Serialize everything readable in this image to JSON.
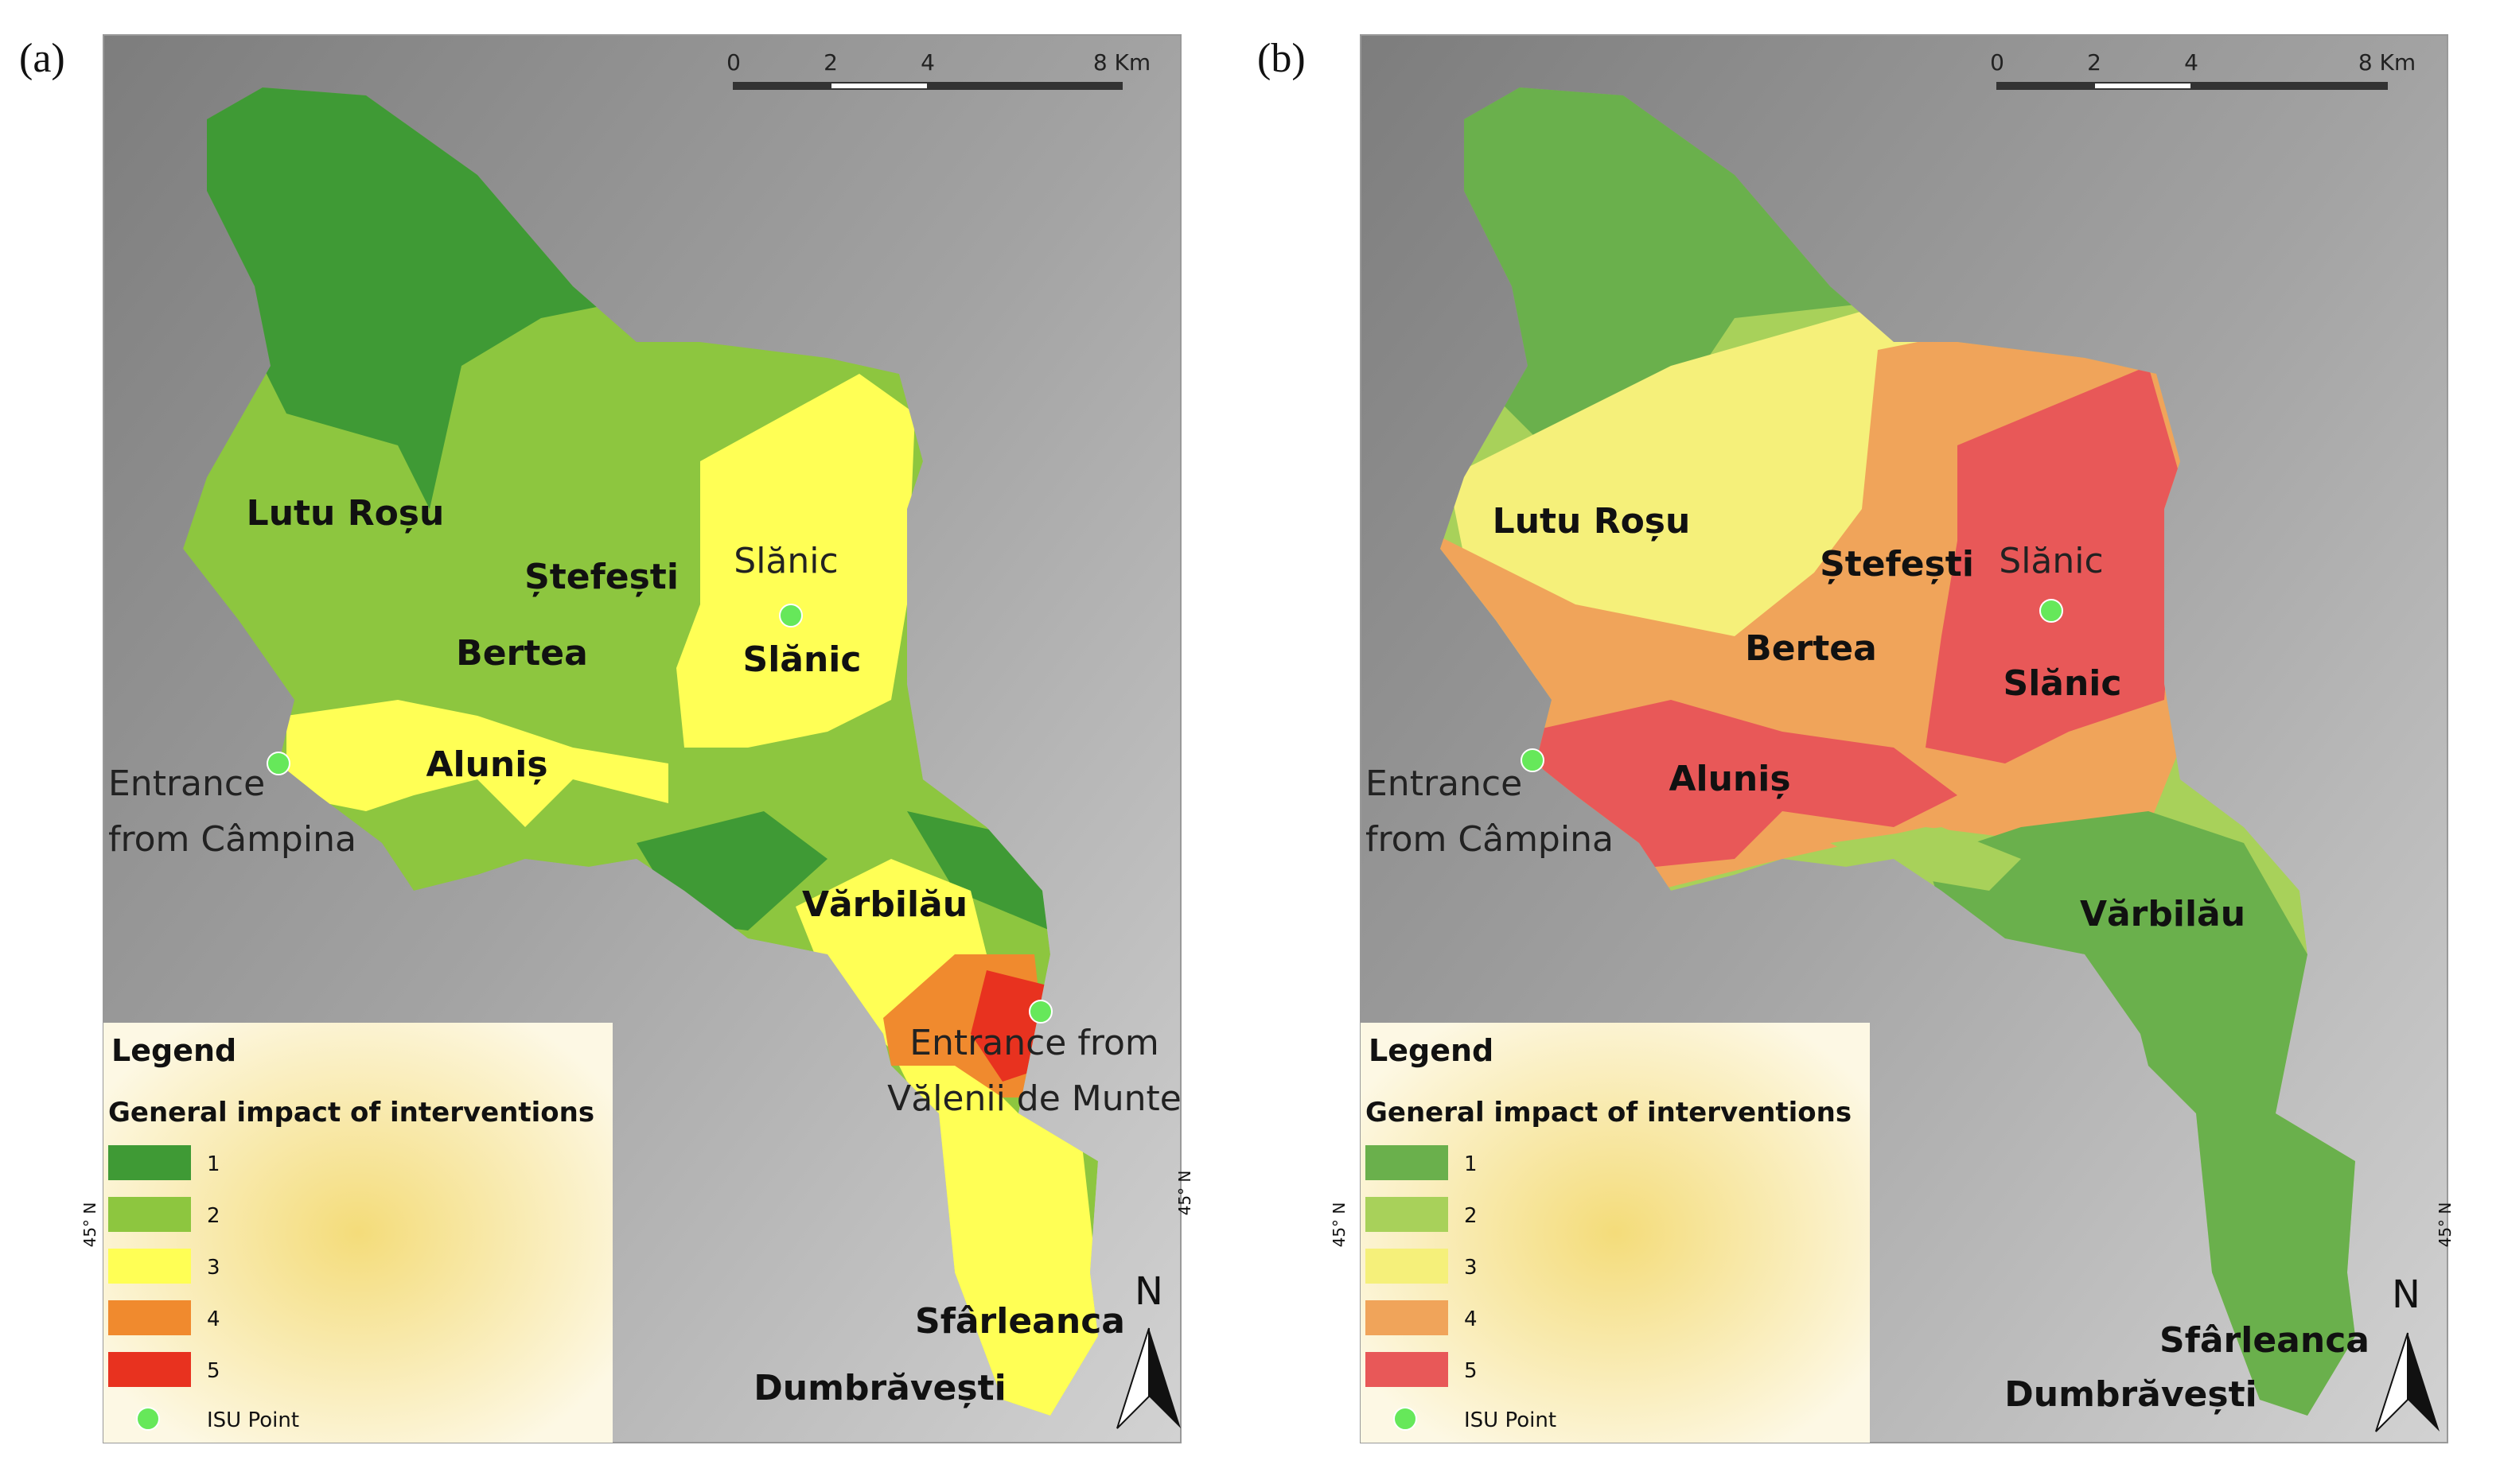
{
  "panels": [
    {
      "label": "(a)",
      "scale_labels": [
        "0",
        "2",
        "4",
        "8 Km"
      ],
      "lat_label": "45° N",
      "north": "N",
      "places": [
        {
          "lines": [
            "Lutu Roșu"
          ],
          "style": "bold"
        },
        {
          "lines": [
            "Ștefești"
          ],
          "style": "bold"
        },
        {
          "lines": [
            "Slănic"
          ],
          "style": "normal"
        },
        {
          "lines": [
            "Bertea"
          ],
          "style": "bold"
        },
        {
          "lines": [
            "Slănic"
          ],
          "style": "bold"
        },
        {
          "lines": [
            "Aluniș"
          ],
          "style": "bold"
        },
        {
          "lines": [
            "Entrance",
            "from Câmpina"
          ],
          "style": "normal"
        },
        {
          "lines": [
            "Vărbilău"
          ],
          "style": "bold"
        },
        {
          "lines": [
            "Entrance from",
            "Vălenii de Munte"
          ],
          "style": "normal"
        },
        {
          "lines": [
            "Sfârleanca"
          ],
          "style": "bold"
        },
        {
          "lines": [
            "Dumbrăvești"
          ],
          "style": "bold"
        }
      ],
      "legend": {
        "title": "Legend",
        "subtitle": "General impact of interventions",
        "items": [
          {
            "label": "1",
            "color": "#3f9a35"
          },
          {
            "label": "2",
            "color": "#8dc63f"
          },
          {
            "label": "3",
            "color": "#ffff55"
          },
          {
            "label": "4",
            "color": "#f08a2e"
          },
          {
            "label": "5",
            "color": "#e8321f"
          }
        ],
        "isu": "ISU Point"
      }
    },
    {
      "label": "(b)",
      "scale_labels": [
        "0",
        "2",
        "4",
        "8 Km"
      ],
      "lat_label": "45° N",
      "north": "N",
      "places": [
        {
          "lines": [
            "Lutu Roșu"
          ],
          "style": "bold"
        },
        {
          "lines": [
            "Ștefești"
          ],
          "style": "bold"
        },
        {
          "lines": [
            "Slănic"
          ],
          "style": "normal"
        },
        {
          "lines": [
            "Bertea"
          ],
          "style": "bold"
        },
        {
          "lines": [
            "Slănic"
          ],
          "style": "bold"
        },
        {
          "lines": [
            "Aluniș"
          ],
          "style": "bold"
        },
        {
          "lines": [
            "Entrance",
            "from Câmpina"
          ],
          "style": "normal"
        },
        {
          "lines": [
            "Vărbilău"
          ],
          "style": "bold"
        },
        {
          "lines": [
            "Sfârleanca"
          ],
          "style": "bold"
        },
        {
          "lines": [
            "Dumbrăvești"
          ],
          "style": "bold"
        }
      ],
      "legend": {
        "title": "Legend",
        "subtitle": "General impact of interventions",
        "items": [
          {
            "label": "1",
            "color": "#6ab04c"
          },
          {
            "label": "2",
            "color": "#a8d15a"
          },
          {
            "label": "3",
            "color": "#f5f07a"
          },
          {
            "label": "4",
            "color": "#f0a45a"
          },
          {
            "label": "5",
            "color": "#e85858"
          }
        ],
        "isu": "ISU Point"
      }
    }
  ]
}
